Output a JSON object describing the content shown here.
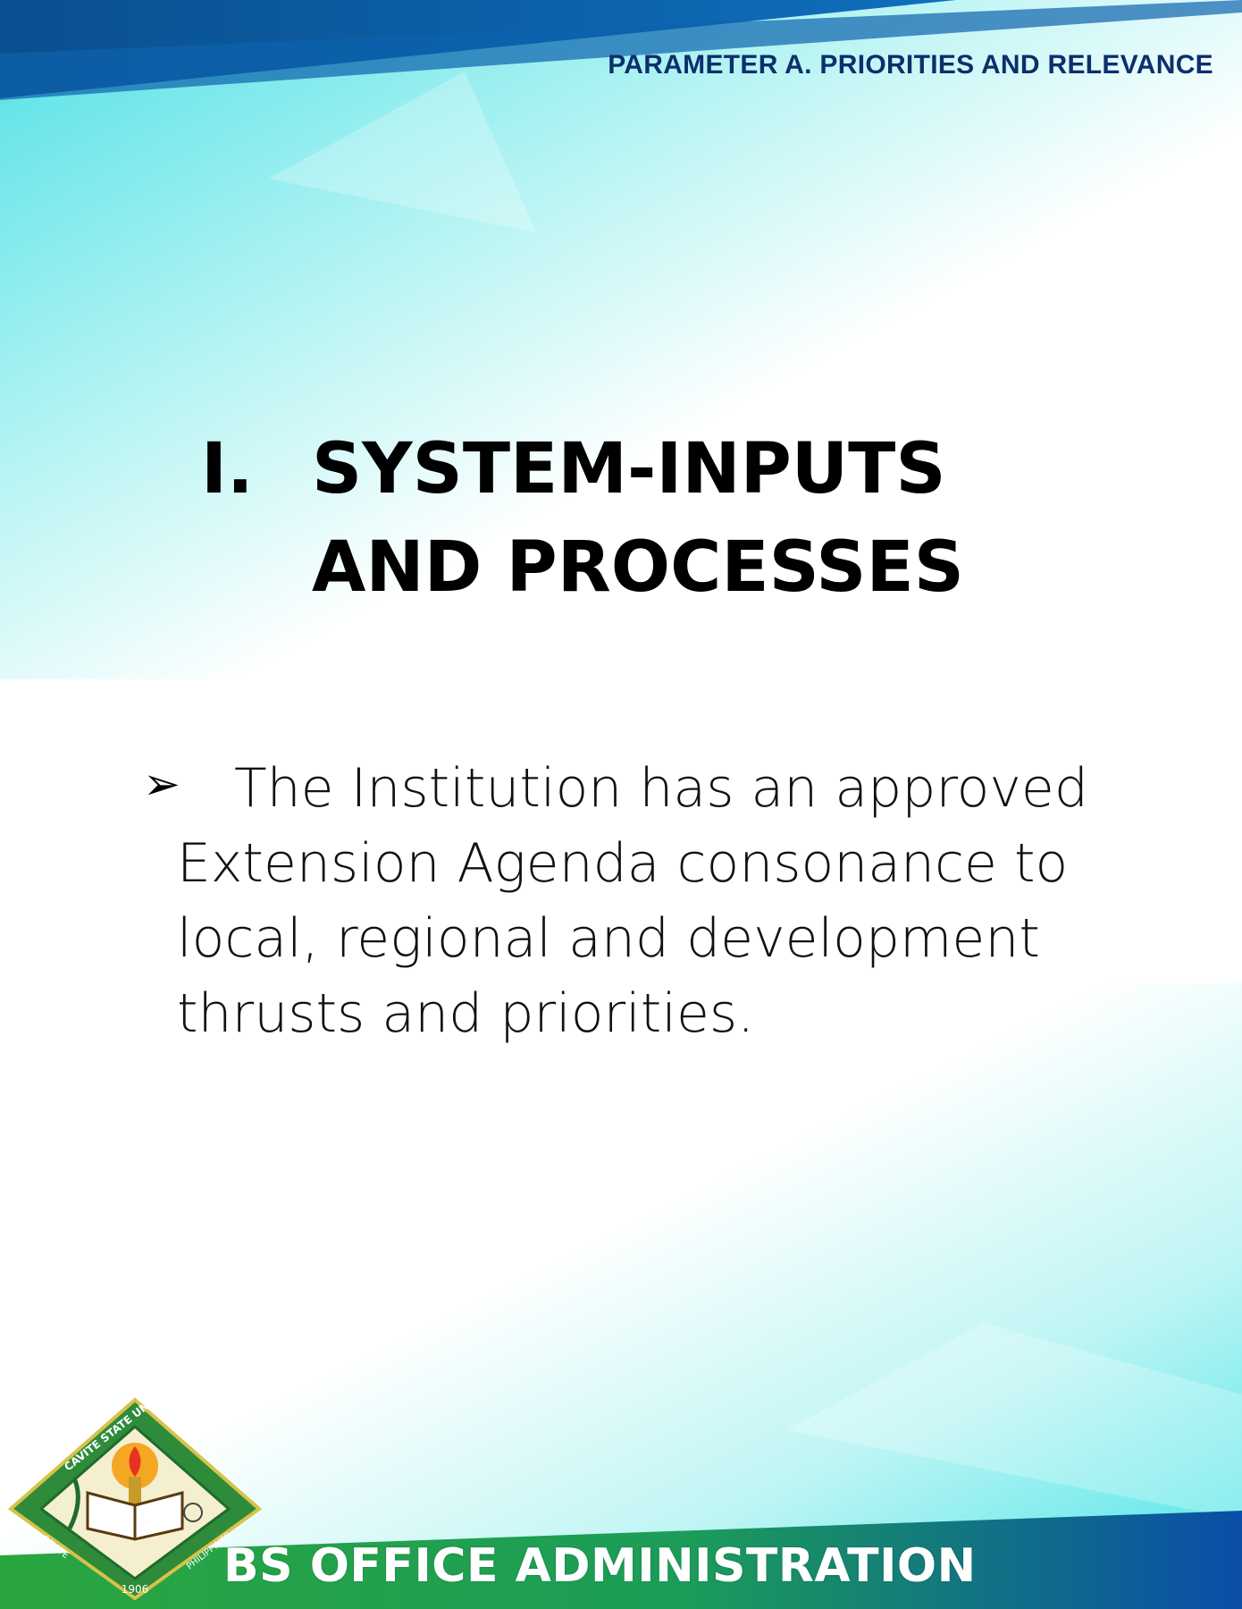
{
  "header": {
    "parameter_label": "PARAMETER A. PRIORITIES AND RELEVANCE"
  },
  "section": {
    "number": "I.",
    "title_line1": "SYSTEM-INPUTS",
    "title_line2": "AND PROCESSES"
  },
  "bullet": {
    "icon": "arrow-bullet-icon",
    "lines": [
      "The Institution has an approved",
      "Extension Agenda consonance to",
      "local, regional and development",
      "thrusts and priorities."
    ]
  },
  "footer": {
    "program_title": "BS OFFICE ADMINISTRATION",
    "logo": {
      "top_text": "CAVITE STATE UNIVERSITY",
      "left_text": "CAVITE",
      "right_text": "PHILIPPINES",
      "year": "1906"
    }
  },
  "colors": {
    "header_blue": "#0d5ea8",
    "header_text": "#0d2f6b",
    "teal_light": "#5ee7e6",
    "footer_green": "#1e9b3c",
    "footer_blue": "#0b4fa8",
    "logo_green": "#2e8b3a"
  }
}
